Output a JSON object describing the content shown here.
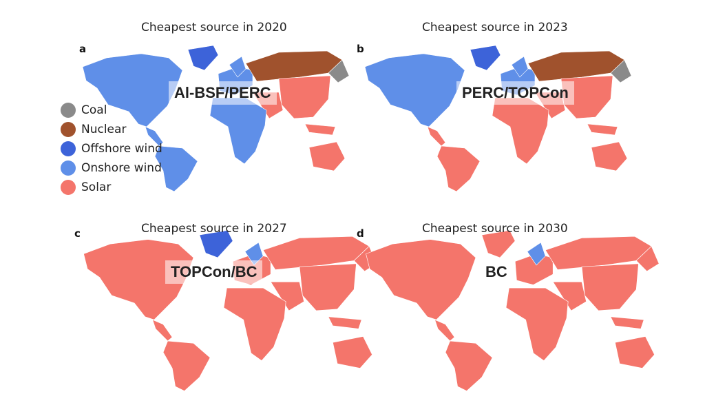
{
  "categories": {
    "coal": {
      "label": "Coal",
      "color": "#8a8a8a"
    },
    "nuclear": {
      "label": "Nuclear",
      "color": "#a0522d"
    },
    "offshore": {
      "label": "Offshore wind",
      "color": "#3d63d9"
    },
    "onshore": {
      "label": "Onshore wind",
      "color": "#5f8fe8"
    },
    "solar": {
      "label": "Solar",
      "color": "#f4756b"
    }
  },
  "legend_order": [
    "coal",
    "nuclear",
    "offshore",
    "onshore",
    "solar"
  ],
  "panels": [
    {
      "letter": "a",
      "title": "Cheapest source in 2020",
      "technology": "Al-BSF/PERC",
      "regions": {
        "north_america": "onshore",
        "greenland": "offshore",
        "central_america": "onshore",
        "south_america": "onshore",
        "europe": "onshore",
        "scandinavia": "onshore",
        "russia": "nuclear",
        "africa": "onshore",
        "middle_east": "solar",
        "asia": "solar",
        "east_russia": "coal",
        "se_asia": "solar",
        "australia": "solar"
      }
    },
    {
      "letter": "b",
      "title": "Cheapest source in 2023",
      "technology": "PERC/TOPCon",
      "regions": {
        "north_america": "onshore",
        "greenland": "offshore",
        "central_america": "solar",
        "south_america": "solar",
        "europe": "onshore",
        "scandinavia": "onshore",
        "russia": "nuclear",
        "africa": "solar",
        "middle_east": "solar",
        "asia": "solar",
        "east_russia": "coal",
        "se_asia": "solar",
        "australia": "solar"
      }
    },
    {
      "letter": "c",
      "title": "Cheapest source in 2027",
      "technology": "TOPCon/BC",
      "regions": {
        "north_america": "solar",
        "greenland": "offshore",
        "central_america": "solar",
        "south_america": "solar",
        "europe": "solar",
        "scandinavia": "onshore",
        "russia": "solar",
        "africa": "solar",
        "middle_east": "solar",
        "asia": "solar",
        "east_russia": "solar",
        "se_asia": "solar",
        "australia": "solar"
      }
    },
    {
      "letter": "d",
      "title": "Cheapest source in 2030",
      "technology": "BC",
      "regions": {
        "north_america": "solar",
        "greenland": "solar",
        "central_america": "solar",
        "south_america": "solar",
        "europe": "solar",
        "scandinavia": "onshore",
        "russia": "solar",
        "africa": "solar",
        "middle_east": "solar",
        "asia": "solar",
        "east_russia": "solar",
        "se_asia": "solar",
        "australia": "solar"
      }
    }
  ]
}
